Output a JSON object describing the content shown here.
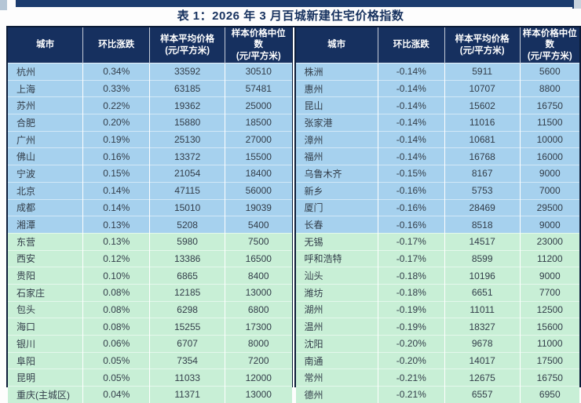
{
  "page": {
    "title": "表 1：2026 年 3 月百城新建住宅价格指数"
  },
  "colors": {
    "bar_navy": "#1c3c6e",
    "title_navy": "#17325f",
    "header_navy": "#16305f",
    "row_blue": "#a6d1ee",
    "row_green": "#c8efd6"
  },
  "table": {
    "headers": {
      "city": "城市",
      "mom_change": "环比涨跌",
      "avg_price_line1": "样本平均价格",
      "avg_price_line2": "(元/平方米)",
      "median_price_line1": "样本价格中位数",
      "median_price_line2": "(元/平方米)"
    },
    "highlight_green_from_row": 11,
    "left_rows": [
      {
        "city": "杭州",
        "change": "0.34%",
        "avg": "33592",
        "median": "30510"
      },
      {
        "city": "上海",
        "change": "0.33%",
        "avg": "63185",
        "median": "57481"
      },
      {
        "city": "苏州",
        "change": "0.22%",
        "avg": "19362",
        "median": "25000"
      },
      {
        "city": "合肥",
        "change": "0.20%",
        "avg": "15880",
        "median": "18500"
      },
      {
        "city": "广州",
        "change": "0.19%",
        "avg": "25130",
        "median": "27000"
      },
      {
        "city": "佛山",
        "change": "0.16%",
        "avg": "13372",
        "median": "15500"
      },
      {
        "city": "宁波",
        "change": "0.15%",
        "avg": "21054",
        "median": "18400"
      },
      {
        "city": "北京",
        "change": "0.14%",
        "avg": "47115",
        "median": "56000"
      },
      {
        "city": "成都",
        "change": "0.14%",
        "avg": "15010",
        "median": "19039"
      },
      {
        "city": "湘潭",
        "change": "0.13%",
        "avg": "5208",
        "median": "5400"
      },
      {
        "city": "东营",
        "change": "0.13%",
        "avg": "5980",
        "median": "7500"
      },
      {
        "city": "西安",
        "change": "0.12%",
        "avg": "13386",
        "median": "16500"
      },
      {
        "city": "贵阳",
        "change": "0.10%",
        "avg": "6865",
        "median": "8400"
      },
      {
        "city": "石家庄",
        "change": "0.08%",
        "avg": "12185",
        "median": "13000"
      },
      {
        "city": "包头",
        "change": "0.08%",
        "avg": "6298",
        "median": "6800"
      },
      {
        "city": "海口",
        "change": "0.08%",
        "avg": "15255",
        "median": "17300"
      },
      {
        "city": "银川",
        "change": "0.06%",
        "avg": "6707",
        "median": "8000"
      },
      {
        "city": "阜阳",
        "change": "0.05%",
        "avg": "7354",
        "median": "7200"
      },
      {
        "city": "昆明",
        "change": "0.05%",
        "avg": "11033",
        "median": "12000"
      },
      {
        "city": "重庆(主城区)",
        "change": "0.04%",
        "avg": "11371",
        "median": "13000"
      }
    ],
    "right_rows": [
      {
        "city": "株洲",
        "change": "-0.14%",
        "avg": "5911",
        "median": "5600"
      },
      {
        "city": "惠州",
        "change": "-0.14%",
        "avg": "10707",
        "median": "8800"
      },
      {
        "city": "昆山",
        "change": "-0.14%",
        "avg": "15602",
        "median": "16750"
      },
      {
        "city": "张家港",
        "change": "-0.14%",
        "avg": "11016",
        "median": "11500"
      },
      {
        "city": "漳州",
        "change": "-0.14%",
        "avg": "10681",
        "median": "10000"
      },
      {
        "city": "福州",
        "change": "-0.14%",
        "avg": "16768",
        "median": "16000"
      },
      {
        "city": "乌鲁木齐",
        "change": "-0.15%",
        "avg": "8167",
        "median": "9000"
      },
      {
        "city": "新乡",
        "change": "-0.16%",
        "avg": "5753",
        "median": "7000"
      },
      {
        "city": "厦门",
        "change": "-0.16%",
        "avg": "28469",
        "median": "29500"
      },
      {
        "city": "长春",
        "change": "-0.16%",
        "avg": "8518",
        "median": "9000"
      },
      {
        "city": "无锡",
        "change": "-0.17%",
        "avg": "14517",
        "median": "23000"
      },
      {
        "city": "呼和浩特",
        "change": "-0.17%",
        "avg": "8599",
        "median": "11200"
      },
      {
        "city": "汕头",
        "change": "-0.18%",
        "avg": "10196",
        "median": "9000"
      },
      {
        "city": "潍坊",
        "change": "-0.18%",
        "avg": "6651",
        "median": "7700"
      },
      {
        "city": "湖州",
        "change": "-0.19%",
        "avg": "11011",
        "median": "12500"
      },
      {
        "city": "温州",
        "change": "-0.19%",
        "avg": "18327",
        "median": "15600"
      },
      {
        "city": "沈阳",
        "change": "-0.20%",
        "avg": "9678",
        "median": "11000"
      },
      {
        "city": "南通",
        "change": "-0.20%",
        "avg": "14017",
        "median": "17500"
      },
      {
        "city": "常州",
        "change": "-0.21%",
        "avg": "12675",
        "median": "16750"
      },
      {
        "city": "德州",
        "change": "-0.21%",
        "avg": "6557",
        "median": "6950"
      }
    ]
  },
  "chart_data": {
    "type": "table",
    "title": "表 1：2026 年 3 月百城新建住宅价格指数",
    "columns": [
      "城市",
      "环比涨跌",
      "样本平均价格(元/平方米)",
      "样本价格中位数(元/平方米)"
    ],
    "note": "left panel rows 1-20 then right panel rows 1-20; rows 11-20 of each panel shaded green"
  }
}
